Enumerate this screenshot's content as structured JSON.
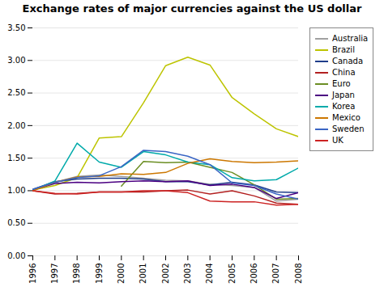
{
  "chart_data": {
    "type": "line",
    "title": "Exchange rates of major currencies against the US dollar",
    "x": [
      1996,
      1997,
      1998,
      1999,
      2000,
      2001,
      2002,
      2003,
      2004,
      2005,
      2006,
      2007,
      2008
    ],
    "series": [
      {
        "name": "Australia",
        "color": "#a0a0a0",
        "values": [
          1.01,
          1.13,
          1.22,
          1.24,
          1.22,
          1.19,
          1.16,
          1.15,
          1.1,
          1.08,
          1.05,
          0.84,
          0.87
        ]
      },
      {
        "name": "Brazil",
        "color": "#bdc400",
        "values": [
          1.01,
          1.08,
          1.2,
          1.81,
          1.83,
          2.35,
          2.92,
          3.05,
          2.93,
          2.43,
          2.18,
          1.95,
          1.83
        ]
      },
      {
        "name": "Canada",
        "color": "#1f3d8a",
        "values": [
          1.02,
          1.14,
          1.18,
          1.19,
          1.19,
          1.18,
          1.14,
          1.14,
          1.09,
          1.13,
          1.09,
          0.98,
          0.97
        ]
      },
      {
        "name": "China",
        "color": "#b22020",
        "values": [
          1.0,
          0.95,
          0.96,
          0.98,
          0.98,
          0.98,
          1.0,
          1.01,
          0.95,
          1.0,
          0.92,
          0.81,
          0.79
        ]
      },
      {
        "name": "Euro",
        "color": "#6b8e23",
        "values": [
          null,
          null,
          null,
          null,
          1.07,
          1.45,
          1.43,
          1.44,
          1.36,
          1.28,
          1.09,
          0.87,
          0.88
        ]
      },
      {
        "name": "Japan",
        "color": "#4b0082",
        "values": [
          1.01,
          1.11,
          1.13,
          1.12,
          1.14,
          1.15,
          1.14,
          1.15,
          1.08,
          1.1,
          1.05,
          0.88,
          0.97
        ]
      },
      {
        "name": "Korea",
        "color": "#00aaaa",
        "values": [
          1.01,
          1.15,
          1.73,
          1.44,
          1.36,
          1.6,
          1.55,
          1.44,
          1.4,
          1.2,
          1.15,
          1.17,
          1.35
        ]
      },
      {
        "name": "Mexico",
        "color": "#cc7700",
        "values": [
          1.0,
          1.13,
          1.21,
          1.22,
          1.26,
          1.25,
          1.28,
          1.42,
          1.49,
          1.45,
          1.43,
          1.44,
          1.46
        ]
      },
      {
        "name": "Sweden",
        "color": "#3a65c4",
        "values": [
          1.02,
          1.13,
          1.2,
          1.23,
          1.37,
          1.62,
          1.6,
          1.53,
          1.4,
          1.12,
          1.08,
          0.95,
          0.87
        ]
      },
      {
        "name": "UK",
        "color": "#cc2222",
        "values": [
          1.0,
          0.96,
          0.95,
          0.98,
          0.98,
          1.0,
          1.0,
          0.97,
          0.84,
          0.83,
          0.83,
          0.78,
          0.79
        ]
      }
    ],
    "xlim": [
      1996,
      2008
    ],
    "xticks": [
      1996,
      1997,
      1998,
      1999,
      2000,
      2001,
      2002,
      2003,
      2004,
      2005,
      2006,
      2007,
      2008
    ],
    "ylim": [
      0.0,
      3.5
    ],
    "yticks": [
      {
        "value": 0.0,
        "label": "0.00"
      },
      {
        "value": 0.5,
        "label": "0.50"
      },
      {
        "value": 1.0,
        "label": "1.00"
      },
      {
        "value": 1.5,
        "label": "1.50"
      },
      {
        "value": 2.0,
        "label": "2.00"
      },
      {
        "value": 2.5,
        "label": "2.50"
      },
      {
        "value": 3.0,
        "label": "3.00"
      },
      {
        "value": 3.5,
        "label": "3.50"
      }
    ],
    "grid": "y",
    "legend": "right"
  }
}
